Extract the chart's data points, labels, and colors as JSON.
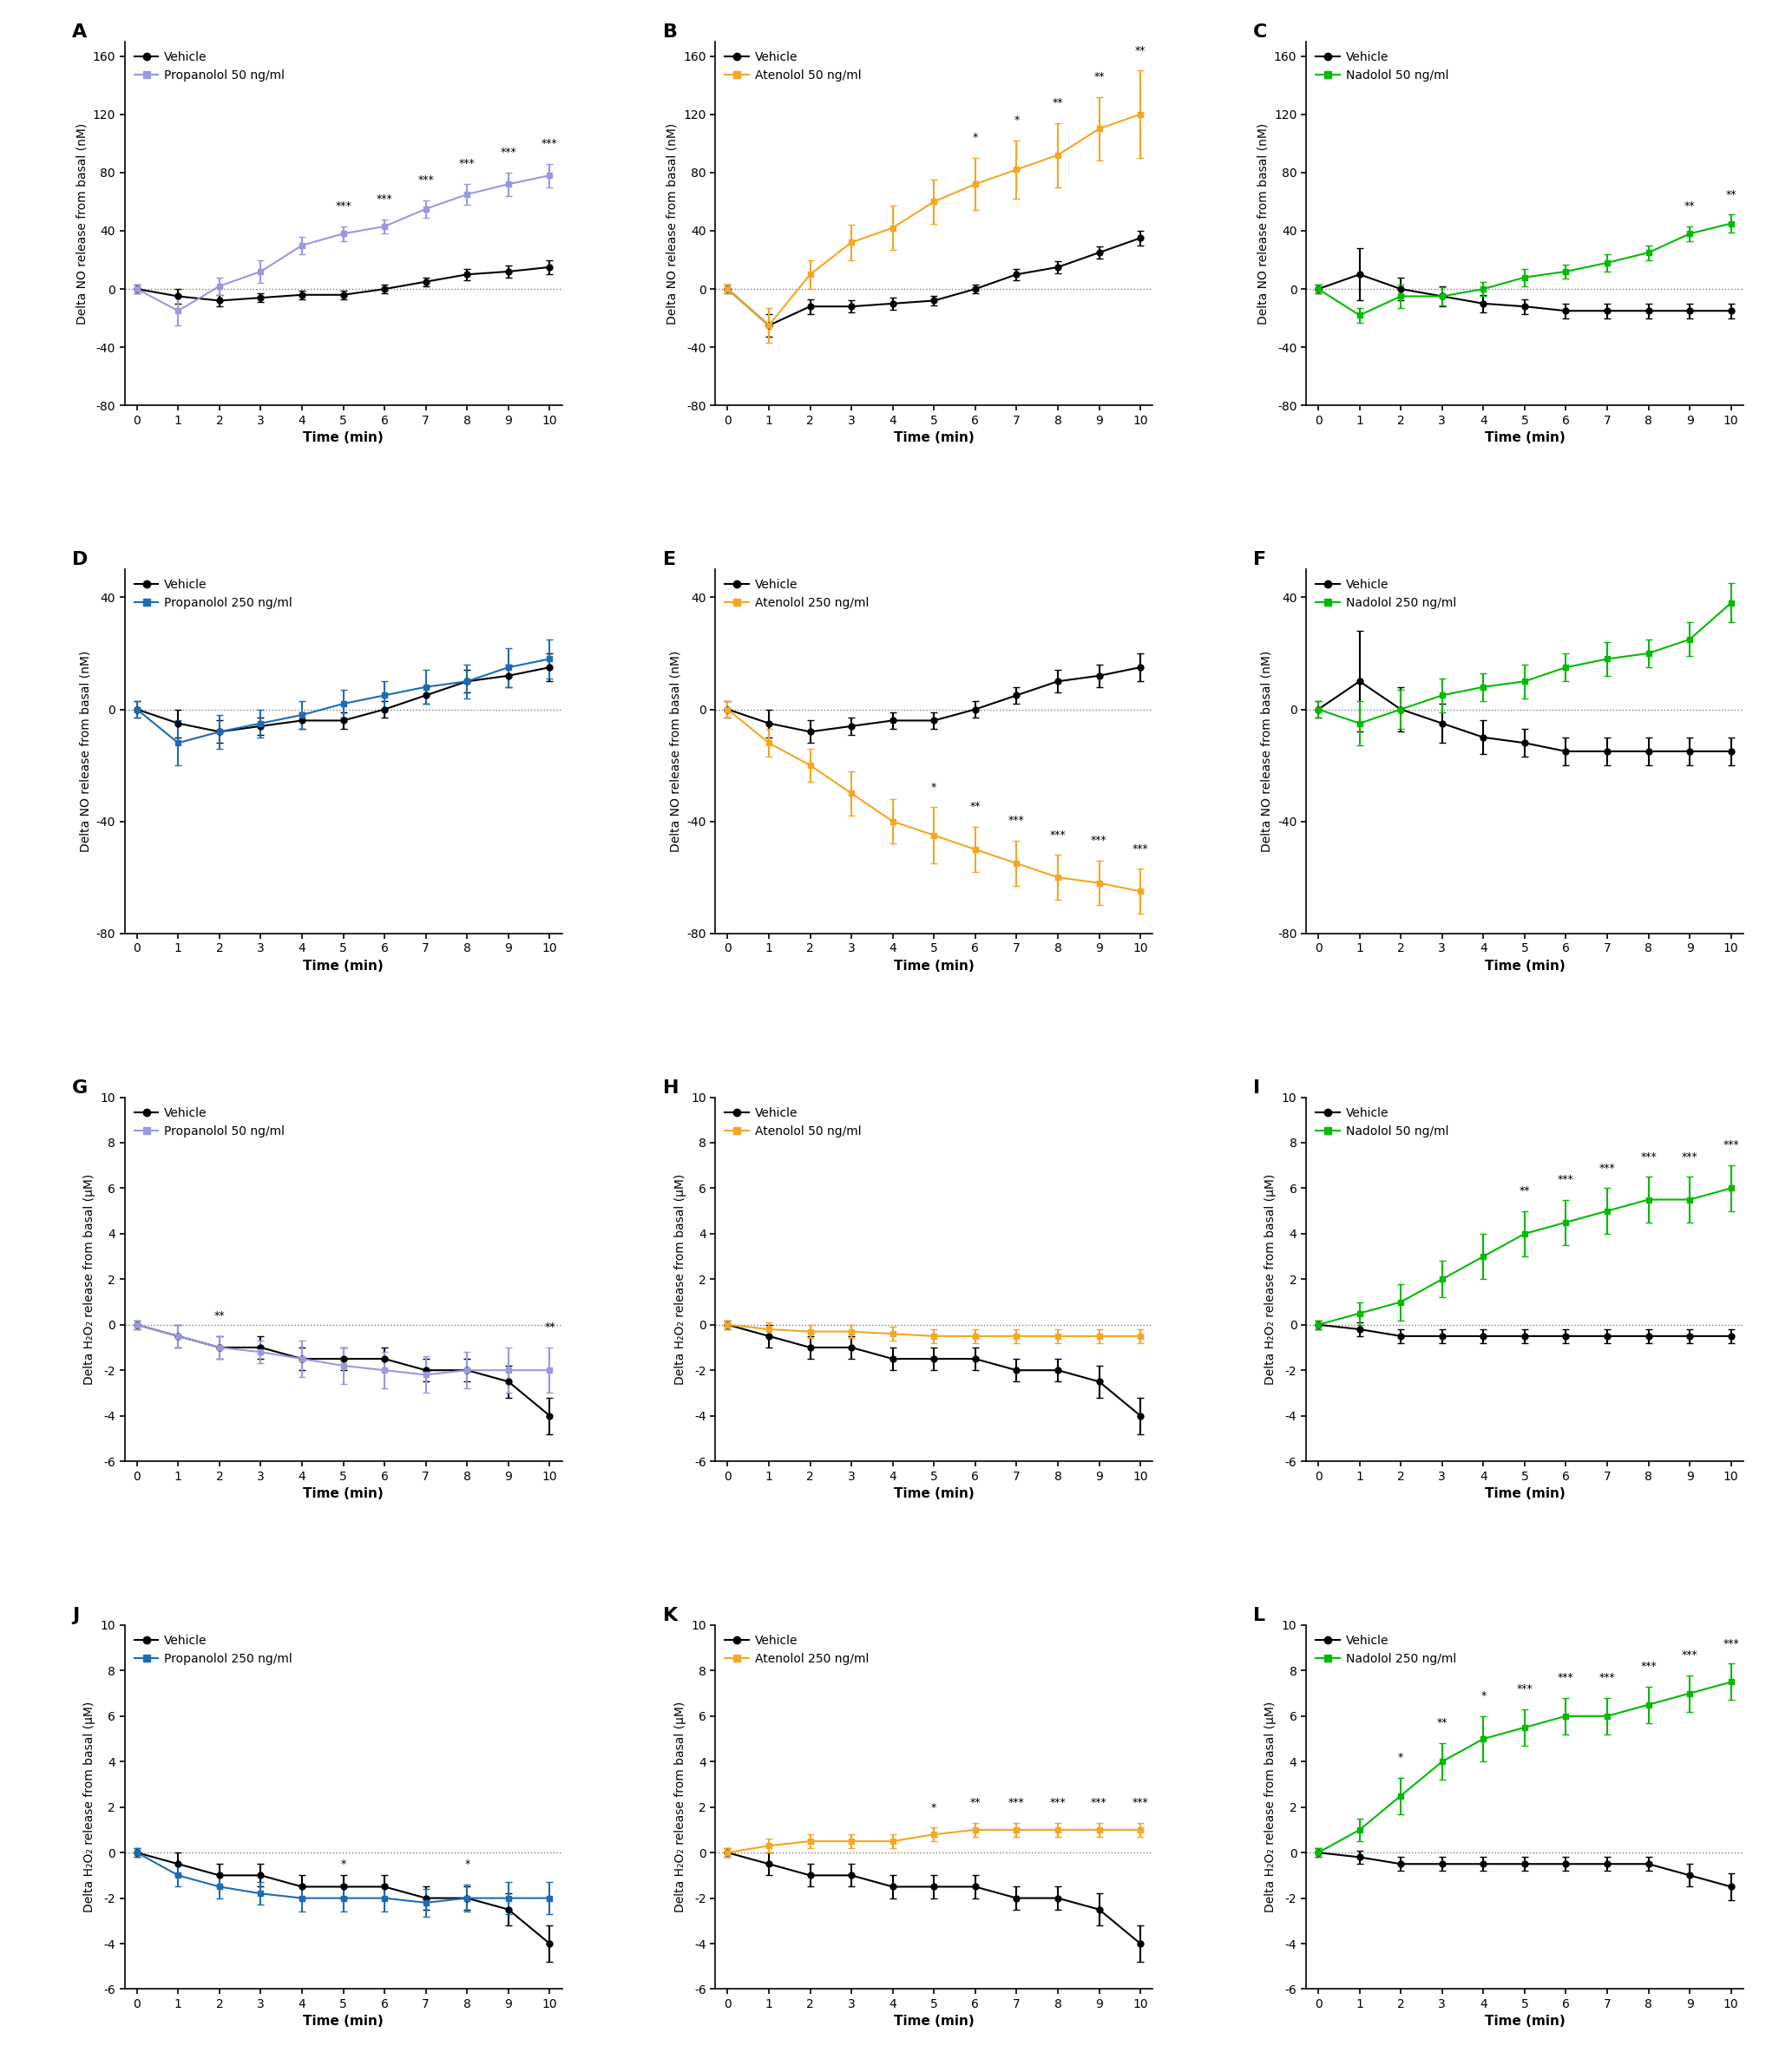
{
  "time": [
    0,
    1,
    2,
    3,
    4,
    5,
    6,
    7,
    8,
    9,
    10
  ],
  "panels": {
    "A": {
      "label": "A",
      "drug_label": "Propanolol 50 ng/ml",
      "drug_color": "#9999dd",
      "ylabel": "Delta NO release from basal (nM)",
      "ylim": [
        -80,
        170
      ],
      "yticks": [
        -80,
        -40,
        0,
        40,
        80,
        120,
        160
      ],
      "vehicle_y": [
        0,
        -5,
        -8,
        -6,
        -4,
        -4,
        0,
        5,
        10,
        12,
        15
      ],
      "vehicle_err": [
        3,
        5,
        4,
        3,
        3,
        3,
        3,
        3,
        4,
        4,
        5
      ],
      "drug_y": [
        0,
        -15,
        2,
        12,
        30,
        38,
        43,
        55,
        65,
        72,
        78
      ],
      "drug_err": [
        3,
        10,
        6,
        8,
        6,
        5,
        5,
        6,
        7,
        8,
        8
      ],
      "sig": [
        null,
        null,
        null,
        null,
        null,
        "***",
        "***",
        "***",
        "***",
        "***",
        "***"
      ]
    },
    "B": {
      "label": "B",
      "drug_label": "Atenolol 50 ng/ml",
      "drug_color": "#f5a623",
      "ylabel": "Delta NO release from basal (nM)",
      "ylim": [
        -80,
        170
      ],
      "yticks": [
        -80,
        -40,
        0,
        40,
        80,
        120,
        160
      ],
      "vehicle_y": [
        0,
        -25,
        -12,
        -12,
        -10,
        -8,
        0,
        10,
        15,
        25,
        35
      ],
      "vehicle_err": [
        3,
        8,
        5,
        4,
        4,
        3,
        3,
        4,
        4,
        4,
        5
      ],
      "drug_y": [
        0,
        -25,
        10,
        32,
        42,
        60,
        72,
        82,
        92,
        110,
        120
      ],
      "drug_err": [
        3,
        12,
        10,
        12,
        15,
        15,
        18,
        20,
        22,
        22,
        30
      ],
      "sig": [
        null,
        null,
        null,
        null,
        null,
        null,
        "*",
        "*",
        "**",
        "**",
        "**"
      ]
    },
    "C": {
      "label": "C",
      "drug_label": "Nadolol 50 ng/ml",
      "drug_color": "#00bb00",
      "ylabel": "Delta NO release from basal (nM)",
      "ylim": [
        -80,
        170
      ],
      "yticks": [
        -80,
        -40,
        0,
        40,
        80,
        120,
        160
      ],
      "vehicle_y": [
        0,
        10,
        0,
        -5,
        -10,
        -12,
        -15,
        -15,
        -15,
        -15,
        -15
      ],
      "vehicle_err": [
        3,
        18,
        8,
        7,
        6,
        5,
        5,
        5,
        5,
        5,
        5
      ],
      "drug_y": [
        0,
        -18,
        -5,
        -5,
        0,
        8,
        12,
        18,
        25,
        38,
        45
      ],
      "drug_err": [
        3,
        5,
        8,
        6,
        5,
        6,
        5,
        6,
        5,
        5,
        6
      ],
      "sig": [
        null,
        null,
        null,
        null,
        null,
        null,
        null,
        null,
        null,
        "**",
        "**"
      ]
    },
    "D": {
      "label": "D",
      "drug_label": "Propanolol 250 ng/ml",
      "drug_color": "#1c6cb5",
      "ylabel": "Delta NO release from basal (nM)",
      "ylim": [
        -80,
        50
      ],
      "yticks": [
        -80,
        -40,
        0,
        40
      ],
      "vehicle_y": [
        0,
        -5,
        -8,
        -6,
        -4,
        -4,
        0,
        5,
        10,
        12,
        15
      ],
      "vehicle_err": [
        3,
        5,
        4,
        3,
        3,
        3,
        3,
        3,
        4,
        4,
        5
      ],
      "drug_y": [
        0,
        -12,
        -8,
        -5,
        -2,
        2,
        5,
        8,
        10,
        15,
        18
      ],
      "drug_err": [
        3,
        8,
        6,
        5,
        5,
        5,
        5,
        6,
        6,
        7,
        7
      ],
      "sig": [
        null,
        null,
        null,
        null,
        null,
        null,
        null,
        null,
        null,
        null,
        null
      ]
    },
    "E": {
      "label": "E",
      "drug_label": "Atenolol 250 ng/ml",
      "drug_color": "#f5a623",
      "ylabel": "Delta NO release from basal (nM)",
      "ylim": [
        -80,
        50
      ],
      "yticks": [
        -80,
        -40,
        0,
        40
      ],
      "vehicle_y": [
        0,
        -5,
        -8,
        -6,
        -4,
        -4,
        0,
        5,
        10,
        12,
        15
      ],
      "vehicle_err": [
        3,
        5,
        4,
        3,
        3,
        3,
        3,
        3,
        4,
        4,
        5
      ],
      "drug_y": [
        0,
        -12,
        -20,
        -30,
        -40,
        -45,
        -50,
        -55,
        -60,
        -62,
        -65
      ],
      "drug_err": [
        3,
        5,
        6,
        8,
        8,
        10,
        8,
        8,
        8,
        8,
        8
      ],
      "sig": [
        null,
        null,
        null,
        null,
        null,
        "*",
        "**",
        "***",
        "***",
        "***",
        "***"
      ]
    },
    "F": {
      "label": "F",
      "drug_label": "Nadolol 250 ng/ml",
      "drug_color": "#00bb00",
      "ylabel": "Delta NO release from basal (nM)",
      "ylim": [
        -80,
        50
      ],
      "yticks": [
        -80,
        -40,
        0,
        40
      ],
      "vehicle_y": [
        0,
        10,
        0,
        -5,
        -10,
        -12,
        -15,
        -15,
        -15,
        -15,
        -15
      ],
      "vehicle_err": [
        3,
        18,
        8,
        7,
        6,
        5,
        5,
        5,
        5,
        5,
        5
      ],
      "drug_y": [
        0,
        -5,
        0,
        5,
        8,
        10,
        15,
        18,
        20,
        25,
        38
      ],
      "drug_err": [
        3,
        8,
        7,
        6,
        5,
        6,
        5,
        6,
        5,
        6,
        7
      ],
      "sig": [
        null,
        null,
        null,
        null,
        null,
        null,
        null,
        null,
        null,
        null,
        null
      ]
    },
    "G": {
      "label": "G",
      "drug_label": "Propanolol 50 ng/ml",
      "drug_color": "#9999dd",
      "ylabel": "Delta H₂O₂ release from basal (μM)",
      "ylim": [
        -6,
        10
      ],
      "yticks": [
        -6,
        -4,
        -2,
        0,
        2,
        4,
        6,
        8,
        10
      ],
      "vehicle_y": [
        0,
        -0.5,
        -1,
        -1,
        -1.5,
        -1.5,
        -1.5,
        -2,
        -2,
        -2.5,
        -4
      ],
      "vehicle_err": [
        0.2,
        0.5,
        0.5,
        0.5,
        0.5,
        0.5,
        0.5,
        0.5,
        0.5,
        0.7,
        0.8
      ],
      "drug_y": [
        0,
        -0.5,
        -1,
        -1.2,
        -1.5,
        -1.8,
        -2,
        -2.2,
        -2,
        -2,
        -2
      ],
      "drug_err": [
        0.2,
        0.5,
        0.5,
        0.5,
        0.8,
        0.8,
        0.8,
        0.8,
        0.8,
        1.0,
        1.0
      ],
      "sig": [
        null,
        null,
        "**",
        null,
        null,
        null,
        null,
        null,
        null,
        null,
        "**"
      ]
    },
    "H": {
      "label": "H",
      "drug_label": "Atenolol 50 ng/ml",
      "drug_color": "#f5a623",
      "ylabel": "Delta H₂O₂ release from basal (μM)",
      "ylim": [
        -6,
        10
      ],
      "yticks": [
        -6,
        -4,
        -2,
        0,
        2,
        4,
        6,
        8,
        10
      ],
      "vehicle_y": [
        0,
        -0.5,
        -1,
        -1,
        -1.5,
        -1.5,
        -1.5,
        -2,
        -2,
        -2.5,
        -4
      ],
      "vehicle_err": [
        0.2,
        0.5,
        0.5,
        0.5,
        0.5,
        0.5,
        0.5,
        0.5,
        0.5,
        0.7,
        0.8
      ],
      "drug_y": [
        0,
        -0.2,
        -0.3,
        -0.3,
        -0.4,
        -0.5,
        -0.5,
        -0.5,
        -0.5,
        -0.5,
        -0.5
      ],
      "drug_err": [
        0.2,
        0.3,
        0.3,
        0.3,
        0.3,
        0.3,
        0.3,
        0.3,
        0.3,
        0.3,
        0.3
      ],
      "sig": [
        null,
        null,
        null,
        null,
        null,
        null,
        null,
        null,
        null,
        null,
        null
      ]
    },
    "I": {
      "label": "I",
      "drug_label": "Nadolol 50 ng/ml",
      "drug_color": "#00bb00",
      "ylabel": "Delta H₂O₂ release from basal (μM)",
      "ylim": [
        -6,
        10
      ],
      "yticks": [
        -6,
        -4,
        -2,
        0,
        2,
        4,
        6,
        8,
        10
      ],
      "vehicle_y": [
        0,
        -0.2,
        -0.5,
        -0.5,
        -0.5,
        -0.5,
        -0.5,
        -0.5,
        -0.5,
        -0.5,
        -0.5
      ],
      "vehicle_err": [
        0.2,
        0.3,
        0.3,
        0.3,
        0.3,
        0.3,
        0.3,
        0.3,
        0.3,
        0.3,
        0.3
      ],
      "drug_y": [
        0,
        0.5,
        1.0,
        2.0,
        3.0,
        4.0,
        4.5,
        5.0,
        5.5,
        5.5,
        6.0
      ],
      "drug_err": [
        0.2,
        0.5,
        0.8,
        0.8,
        1.0,
        1.0,
        1.0,
        1.0,
        1.0,
        1.0,
        1.0
      ],
      "sig": [
        null,
        null,
        null,
        null,
        null,
        "**",
        "***",
        "***",
        "***",
        "***",
        "***"
      ]
    },
    "J": {
      "label": "J",
      "drug_label": "Propanolol 250 ng/ml",
      "drug_color": "#1c6cb5",
      "ylabel": "Delta H₂O₂ release from basal (μM)",
      "ylim": [
        -6,
        10
      ],
      "yticks": [
        -6,
        -4,
        -2,
        0,
        2,
        4,
        6,
        8,
        10
      ],
      "vehicle_y": [
        0,
        -0.5,
        -1,
        -1,
        -1.5,
        -1.5,
        -1.5,
        -2,
        -2,
        -2.5,
        -4
      ],
      "vehicle_err": [
        0.2,
        0.5,
        0.5,
        0.5,
        0.5,
        0.5,
        0.5,
        0.5,
        0.5,
        0.7,
        0.8
      ],
      "drug_y": [
        0,
        -1.0,
        -1.5,
        -1.8,
        -2.0,
        -2.0,
        -2.0,
        -2.2,
        -2.0,
        -2.0,
        -2.0
      ],
      "drug_err": [
        0.2,
        0.5,
        0.5,
        0.5,
        0.6,
        0.6,
        0.6,
        0.6,
        0.6,
        0.7,
        0.7
      ],
      "sig": [
        null,
        null,
        null,
        null,
        null,
        "*",
        null,
        null,
        "*",
        null,
        null
      ]
    },
    "K": {
      "label": "K",
      "drug_label": "Atenolol 250 ng/ml",
      "drug_color": "#f5a623",
      "ylabel": "Delta H₂O₂ release from basal (μM)",
      "ylim": [
        -6,
        10
      ],
      "yticks": [
        -6,
        -4,
        -2,
        0,
        2,
        4,
        6,
        8,
        10
      ],
      "vehicle_y": [
        0,
        -0.5,
        -1,
        -1,
        -1.5,
        -1.5,
        -1.5,
        -2,
        -2,
        -2.5,
        -4
      ],
      "vehicle_err": [
        0.2,
        0.5,
        0.5,
        0.5,
        0.5,
        0.5,
        0.5,
        0.5,
        0.5,
        0.7,
        0.8
      ],
      "drug_y": [
        0,
        0.3,
        0.5,
        0.5,
        0.5,
        0.8,
        1.0,
        1.0,
        1.0,
        1.0,
        1.0
      ],
      "drug_err": [
        0.2,
        0.3,
        0.3,
        0.3,
        0.3,
        0.3,
        0.3,
        0.3,
        0.3,
        0.3,
        0.3
      ],
      "sig": [
        null,
        null,
        null,
        null,
        null,
        "*",
        "**",
        "***",
        "***",
        "***",
        "***"
      ]
    },
    "L": {
      "label": "L",
      "drug_label": "Nadolol 250 ng/ml",
      "drug_color": "#00bb00",
      "ylabel": "Delta H₂O₂ release from basal (μM)",
      "ylim": [
        -6,
        10
      ],
      "yticks": [
        -6,
        -4,
        -2,
        0,
        2,
        4,
        6,
        8,
        10
      ],
      "vehicle_y": [
        0,
        -0.2,
        -0.5,
        -0.5,
        -0.5,
        -0.5,
        -0.5,
        -0.5,
        -0.5,
        -1.0,
        -1.5
      ],
      "vehicle_err": [
        0.2,
        0.3,
        0.3,
        0.3,
        0.3,
        0.3,
        0.3,
        0.3,
        0.3,
        0.5,
        0.6
      ],
      "drug_y": [
        0,
        1.0,
        2.5,
        4.0,
        5.0,
        5.5,
        6.0,
        6.0,
        6.5,
        7.0,
        7.5
      ],
      "drug_err": [
        0.2,
        0.5,
        0.8,
        0.8,
        1.0,
        0.8,
        0.8,
        0.8,
        0.8,
        0.8,
        0.8
      ],
      "sig": [
        null,
        null,
        "*",
        "**",
        "*",
        "***",
        "***",
        "***",
        "***",
        "***",
        "***"
      ]
    }
  },
  "vehicle_color": "#000000",
  "vehicle_label": "Vehicle",
  "background_color": "#ffffff",
  "xlabel": "Time (min)"
}
